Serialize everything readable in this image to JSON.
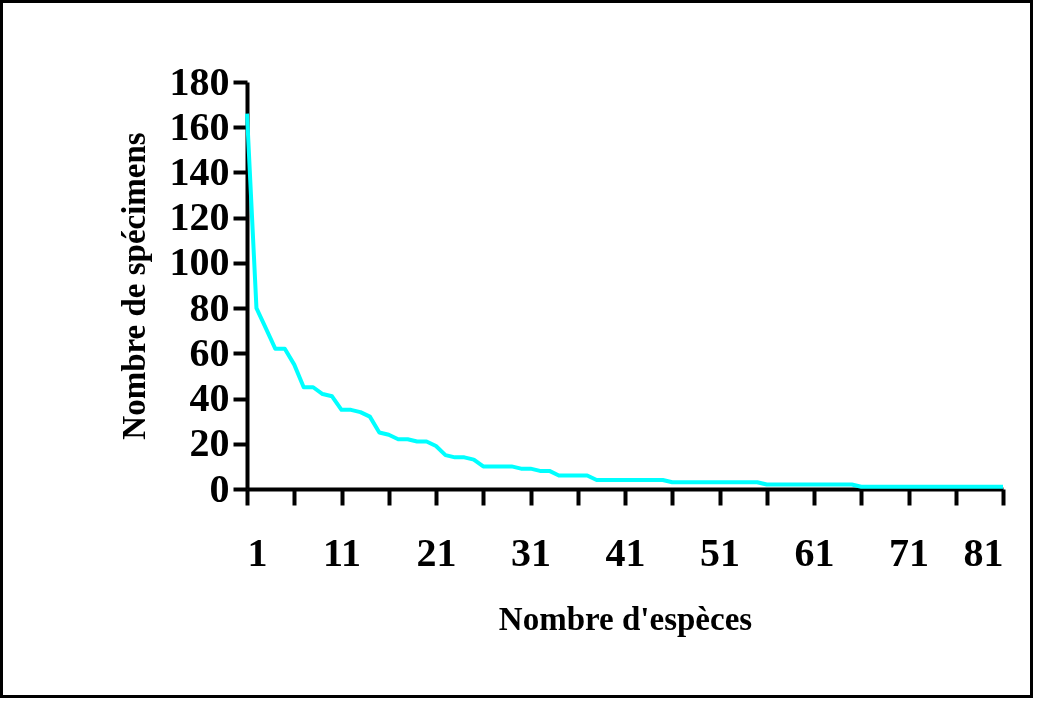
{
  "chart_data": {
    "type": "line",
    "xlabel": "Nombre d'espèces",
    "ylabel": "Nombre de spécimens",
    "x": [
      1,
      2,
      3,
      4,
      5,
      6,
      7,
      8,
      9,
      10,
      11,
      12,
      13,
      14,
      15,
      16,
      17,
      18,
      19,
      20,
      21,
      22,
      23,
      24,
      25,
      26,
      27,
      28,
      29,
      30,
      31,
      32,
      33,
      34,
      35,
      36,
      37,
      38,
      39,
      40,
      41,
      42,
      43,
      44,
      45,
      46,
      47,
      48,
      49,
      50,
      51,
      52,
      53,
      54,
      55,
      56,
      57,
      58,
      59,
      60,
      61,
      62,
      63,
      64,
      65,
      66,
      67,
      68,
      69,
      70,
      71,
      72,
      73,
      74,
      75,
      76,
      77,
      78,
      79,
      80,
      81
    ],
    "series": [
      {
        "color": "#00ffff",
        "values": [
          166,
          80,
          71,
          62,
          62,
          55,
          45,
          45,
          42,
          41,
          35,
          35,
          34,
          32,
          25,
          24,
          22,
          22,
          21,
          21,
          19,
          15,
          14,
          14,
          13,
          10,
          10,
          10,
          10,
          9,
          9,
          8,
          8,
          6,
          6,
          6,
          6,
          4,
          4,
          4,
          4,
          4,
          4,
          4,
          4,
          3,
          3,
          3,
          3,
          3,
          3,
          3,
          3,
          3,
          3,
          2,
          2,
          2,
          2,
          2,
          2,
          2,
          2,
          2,
          2,
          1,
          1,
          1,
          1,
          1,
          1,
          1,
          1,
          1,
          1,
          1,
          1,
          1,
          1,
          1,
          1
        ]
      }
    ],
    "xlim": [
      1,
      81
    ],
    "xticks": [
      1,
      {
        "value": 6,
        "label": null
      },
      11,
      {
        "value": 16,
        "label": null
      },
      21,
      {
        "value": 26,
        "label": null
      },
      31,
      {
        "value": 36,
        "label": null
      },
      41,
      {
        "value": 46,
        "label": null
      },
      51,
      {
        "value": 56,
        "label": null
      },
      61,
      {
        "value": 66,
        "label": null
      },
      71,
      {
        "value": 76,
        "label": null
      },
      81
    ],
    "ylim": [
      0,
      180
    ],
    "yticks": [
      0,
      20,
      40,
      60,
      80,
      100,
      120,
      140,
      160,
      180
    ],
    "grid": false,
    "marker": "none",
    "line_style": "solid"
  }
}
